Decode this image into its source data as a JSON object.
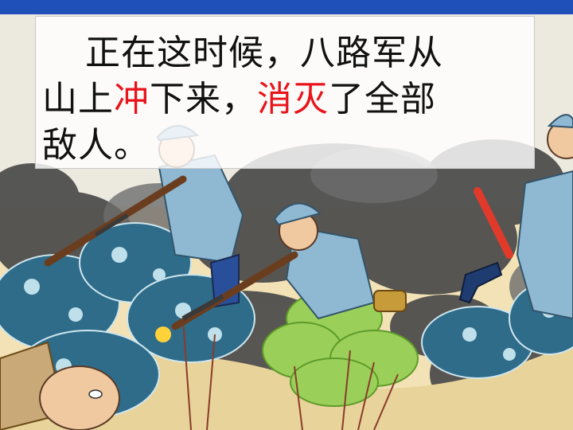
{
  "slide": {
    "text": {
      "line1": "正在这时候，八路军从",
      "line2_a": "山上",
      "line2_b": "冲",
      "line2_c": "下来，",
      "line2_d": "消灭",
      "line2_e": "了全部",
      "line3": "敌人。"
    },
    "colors": {
      "highlight": "#e8141c",
      "text": "#111111",
      "top_strip": "#1f4fb8"
    }
  }
}
